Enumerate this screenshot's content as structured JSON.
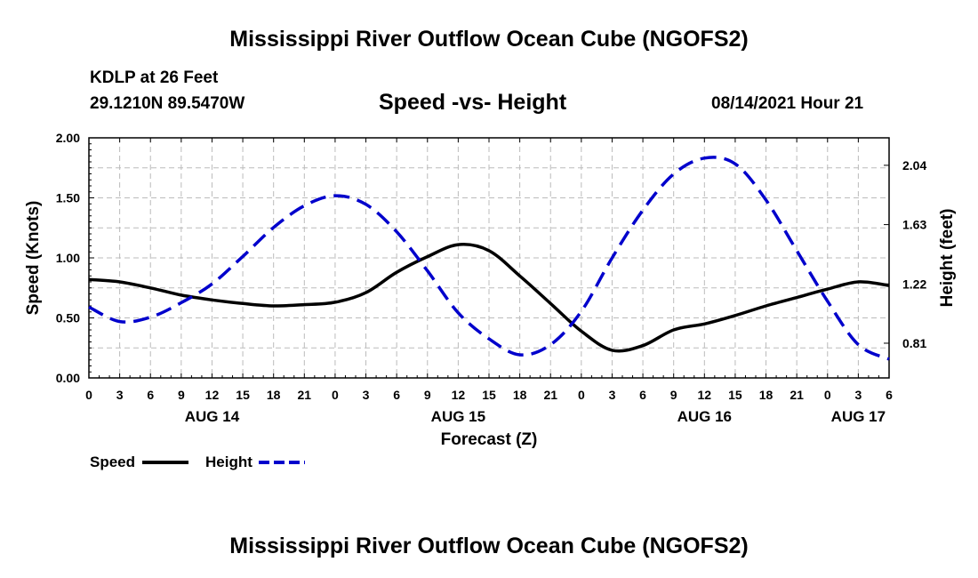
{
  "header": {
    "title": "Mississippi River Outflow Ocean Cube (NGOFS2)",
    "station_name": "KDLP at 26 Feet",
    "station_coords": "29.1210N  89.5470W",
    "subtitle": "Speed -vs- Height",
    "forecast_time": "08/14/2021 Hour 21"
  },
  "footer": {
    "title": "Mississippi River Outflow Ocean Cube (NGOFS2)"
  },
  "chart_data": {
    "type": "line",
    "title": "Speed -vs- Height",
    "xlabel": "Forecast (Z)",
    "ylabel_left": "Speed (Knots)",
    "ylabel_right": "Height (feet)",
    "x_hour_range": [
      0,
      78
    ],
    "x_tick_step_hours": 3,
    "x_tick_labels": [
      "0",
      "3",
      "6",
      "9",
      "12",
      "15",
      "18",
      "21",
      "0",
      "3",
      "6",
      "9",
      "12",
      "15",
      "18",
      "21",
      "0",
      "3",
      "6",
      "9",
      "12",
      "15",
      "18",
      "21",
      "0",
      "3",
      "6"
    ],
    "date_labels": [
      {
        "label": "AUG 14",
        "hour": 12
      },
      {
        "label": "AUG 15",
        "hour": 36
      },
      {
        "label": "AUG 16",
        "hour": 60
      },
      {
        "label": "AUG 17",
        "hour": 75
      }
    ],
    "ylim_left": [
      0,
      2
    ],
    "y_left_ticks": [
      "0.00",
      "0.50",
      "1.00",
      "1.50",
      "2.00"
    ],
    "y_left_tick_values": [
      0,
      0.5,
      1,
      1.5,
      2
    ],
    "ylim_right": [
      0.57,
      2.23
    ],
    "y_right_ticks": [
      "0.81",
      "1.22",
      "1.63",
      "2.04"
    ],
    "y_right_tick_values": [
      0.81,
      1.22,
      1.63,
      2.04
    ],
    "grid": true,
    "legend_position": "bottom-left",
    "series": [
      {
        "name": "Speed",
        "axis": "left",
        "color": "#000000",
        "dash": "solid",
        "x": [
          0,
          3,
          6,
          9,
          12,
          15,
          18,
          21,
          24,
          27,
          30,
          33,
          36,
          39,
          42,
          45,
          48,
          51,
          54,
          57,
          60,
          63,
          66,
          69,
          72,
          75,
          78
        ],
        "values": [
          0.82,
          0.8,
          0.75,
          0.69,
          0.65,
          0.62,
          0.6,
          0.61,
          0.63,
          0.71,
          0.88,
          1.01,
          1.11,
          1.06,
          0.85,
          0.62,
          0.39,
          0.23,
          0.27,
          0.4,
          0.45,
          0.52,
          0.6,
          0.67,
          0.74,
          0.8,
          0.77
        ]
      },
      {
        "name": "Height",
        "axis": "right",
        "color": "#0000cc",
        "dash": "dashed",
        "x": [
          0,
          3,
          6,
          9,
          12,
          15,
          18,
          21,
          24,
          27,
          30,
          33,
          36,
          39,
          42,
          45,
          48,
          51,
          54,
          57,
          60,
          63,
          66,
          69,
          72,
          75,
          78
        ],
        "values": [
          1.06,
          0.96,
          0.99,
          1.09,
          1.22,
          1.41,
          1.61,
          1.76,
          1.83,
          1.77,
          1.58,
          1.31,
          1.02,
          0.84,
          0.73,
          0.8,
          1.03,
          1.4,
          1.73,
          1.98,
          2.09,
          2.05,
          1.8,
          1.45,
          1.1,
          0.8,
          0.7
        ]
      }
    ]
  }
}
